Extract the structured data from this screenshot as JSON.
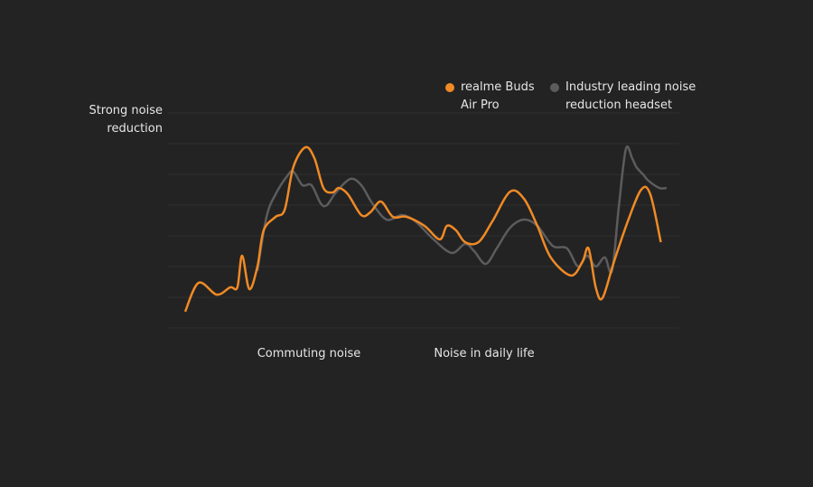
{
  "chart_data": {
    "type": "line",
    "ylabel": "Strong noise reduction",
    "annotations": [
      "Commuting noise",
      "Noise in daily life"
    ],
    "xlim": [
      0,
      101
    ],
    "ylim": [
      0,
      100
    ],
    "grid": true,
    "legend": "top-right",
    "series": [
      {
        "name": "realme Buds Air Pro",
        "color": "#f08a24",
        "x": [
          0,
          2.8,
          6.6,
          9.4,
          10.9,
          11.9,
          13.4,
          15.1,
          16.4,
          18.9,
          20.8,
          22.6,
          25.1,
          27.0,
          28.9,
          30.8,
          32.1,
          34.0,
          36.8,
          38.7,
          40.9,
          43.4,
          46.2,
          50.0,
          53.2,
          54.7,
          56.6,
          58.5,
          61.3,
          64.2,
          67.9,
          70.8,
          73.6,
          76.4,
          80.6,
          83.0,
          84.3,
          85.8,
          87.2,
          89.6,
          92.5,
          95.3,
          97.2,
          99.4
        ],
        "values": [
          7.6,
          21.0,
          15.5,
          18.9,
          18.9,
          33.6,
          18.1,
          28.6,
          45.4,
          51.7,
          55.0,
          74.8,
          84.0,
          79.0,
          65.1,
          63.0,
          65.1,
          62.2,
          52.5,
          53.8,
          58.8,
          51.7,
          51.7,
          47.5,
          41.2,
          47.5,
          45.4,
          39.9,
          39.9,
          49.6,
          63.4,
          60.1,
          47.5,
          32.8,
          24.4,
          30.7,
          37.0,
          18.9,
          13.9,
          30.7,
          49.6,
          64.3,
          62.2,
          39.9
        ]
      },
      {
        "name": "Industry leading noise reduction headset",
        "color": "#5c5c5e",
        "x": [
          15.1,
          17.0,
          18.9,
          21.3,
          22.6,
          24.5,
          26.4,
          28.3,
          29.6,
          31.5,
          34.5,
          36.8,
          39.1,
          42.1,
          45.3,
          48.1,
          51.9,
          55.7,
          58.5,
          60.4,
          62.8,
          65.1,
          67.9,
          70.8,
          73.6,
          76.8,
          79.8,
          82.1,
          84.0,
          85.8,
          87.7,
          89.2,
          90.6,
          92.1,
          93.4,
          94.3,
          95.7,
          96.8,
          99.1,
          100.6
        ],
        "values": [
          26.5,
          51.7,
          62.2,
          70.6,
          72.7,
          66.4,
          66.4,
          58.0,
          57.1,
          63.0,
          69.3,
          66.4,
          58.0,
          50.4,
          52.5,
          49.6,
          41.2,
          34.9,
          39.1,
          35.7,
          29.8,
          37.0,
          46.6,
          50.4,
          47.5,
          38.2,
          37.0,
          28.6,
          33.6,
          28.6,
          32.8,
          26.5,
          55.9,
          83.2,
          79.0,
          74.8,
          71.4,
          68.5,
          65.1,
          65.1
        ]
      }
    ]
  }
}
